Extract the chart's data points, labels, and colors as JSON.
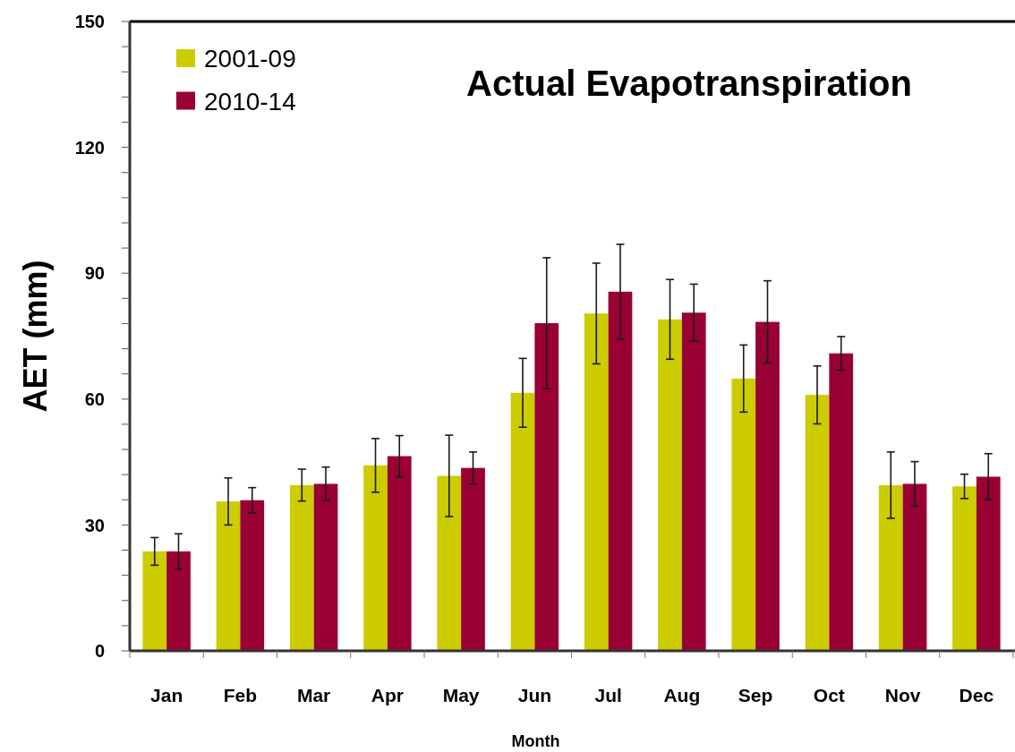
{
  "chart_data": {
    "type": "bar",
    "title": "Actual Evapotranspiration",
    "xlabel": "Month",
    "ylabel": "AET (mm)",
    "categories": [
      "Jan",
      "Feb",
      "Mar",
      "Apr",
      "May",
      "Jun",
      "Jul",
      "Aug",
      "Sep",
      "Oct",
      "Nov",
      "Dec"
    ],
    "series": [
      {
        "name": "2001-09",
        "color": "#cccc00",
        "values": [
          23.7,
          35.6,
          39.5,
          44.2,
          41.7,
          61.5,
          80.4,
          79.0,
          64.9,
          61.0,
          39.5,
          39.2
        ],
        "errors": [
          3.3,
          5.6,
          3.8,
          6.4,
          9.7,
          8.2,
          12.0,
          9.5,
          8.0,
          6.9,
          7.9,
          2.9
        ]
      },
      {
        "name": "2010-14",
        "color": "#990033",
        "values": [
          23.7,
          35.9,
          39.8,
          46.4,
          43.6,
          78.1,
          85.6,
          80.6,
          78.4,
          70.9,
          39.8,
          41.5
        ],
        "errors": [
          4.2,
          3.0,
          4.0,
          4.9,
          3.8,
          15.6,
          11.3,
          6.8,
          9.8,
          4.0,
          5.3,
          5.5
        ]
      }
    ],
    "ylim": [
      0,
      150
    ],
    "yticks": [
      0,
      {
        "value": 6,
        "label": null
      },
      {
        "value": 12,
        "label": null
      },
      {
        "value": 18,
        "label": null
      },
      {
        "value": 24,
        "label": null
      },
      30,
      {
        "value": 36,
        "label": null
      },
      {
        "value": 42,
        "label": null
      },
      {
        "value": 48,
        "label": null
      },
      {
        "value": 54,
        "label": null
      },
      60,
      {
        "value": 66,
        "label": null
      },
      {
        "value": 72,
        "label": null
      },
      {
        "value": 78,
        "label": null
      },
      {
        "value": 84,
        "label": null
      },
      90,
      {
        "value": 96,
        "label": null
      },
      {
        "value": 102,
        "label": null
      },
      {
        "value": 108,
        "label": null
      },
      {
        "value": 114,
        "label": null
      },
      120,
      {
        "value": 126,
        "label": null
      },
      {
        "value": 132,
        "label": null
      },
      {
        "value": 138,
        "label": null
      },
      {
        "value": 144,
        "label": null
      },
      150
    ],
    "legend": "top left"
  }
}
